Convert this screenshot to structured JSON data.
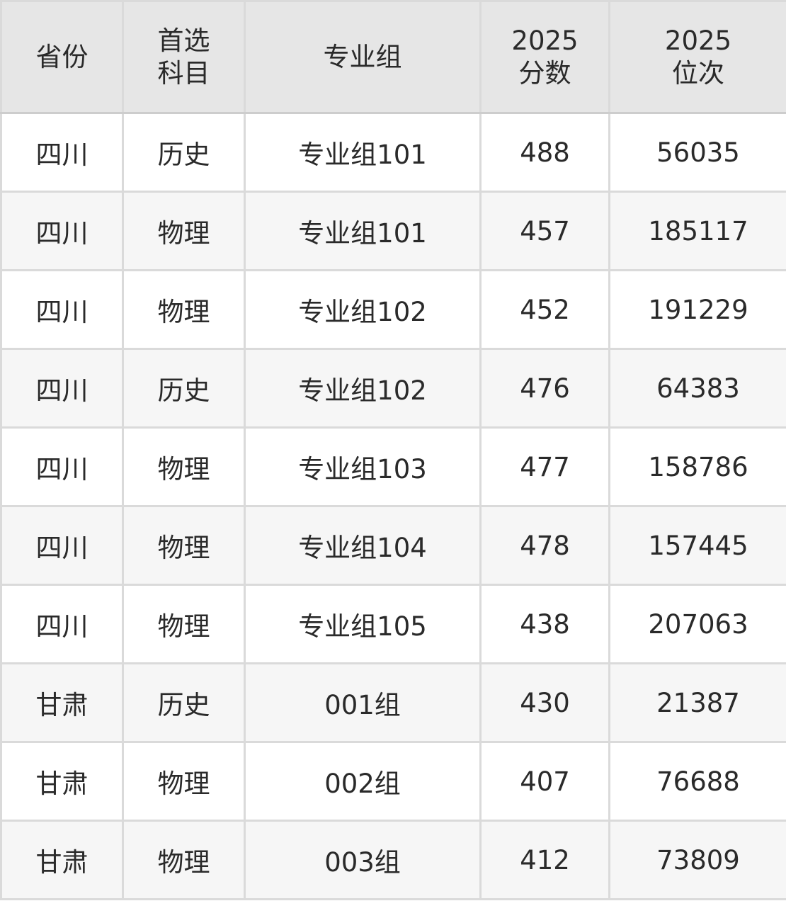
{
  "headers": [
    "省份",
    "首选\n科目",
    "专业组",
    "2025\n分数",
    "2025\n位次"
  ],
  "rows": [
    [
      "四川",
      "历史",
      "专业组101",
      "488",
      "56035"
    ],
    [
      "四川",
      "物理",
      "专业组101",
      "457",
      "185117"
    ],
    [
      "四川",
      "物理",
      "专业组102",
      "452",
      "191229"
    ],
    [
      "四川",
      "历史",
      "专业组102",
      "476",
      "64383"
    ],
    [
      "四川",
      "物理",
      "专业组103",
      "477",
      "158786"
    ],
    [
      "四川",
      "物理",
      "专业组104",
      "478",
      "157445"
    ],
    [
      "四川",
      "物理",
      "专业组105",
      "438",
      "207063"
    ],
    [
      "甘肃",
      "历史",
      "001组",
      "430",
      "21387"
    ],
    [
      "甘肃",
      "物理",
      "002组",
      "407",
      "76688"
    ],
    [
      "甘肃",
      "物理",
      "003组",
      "412",
      "73809"
    ]
  ]
}
